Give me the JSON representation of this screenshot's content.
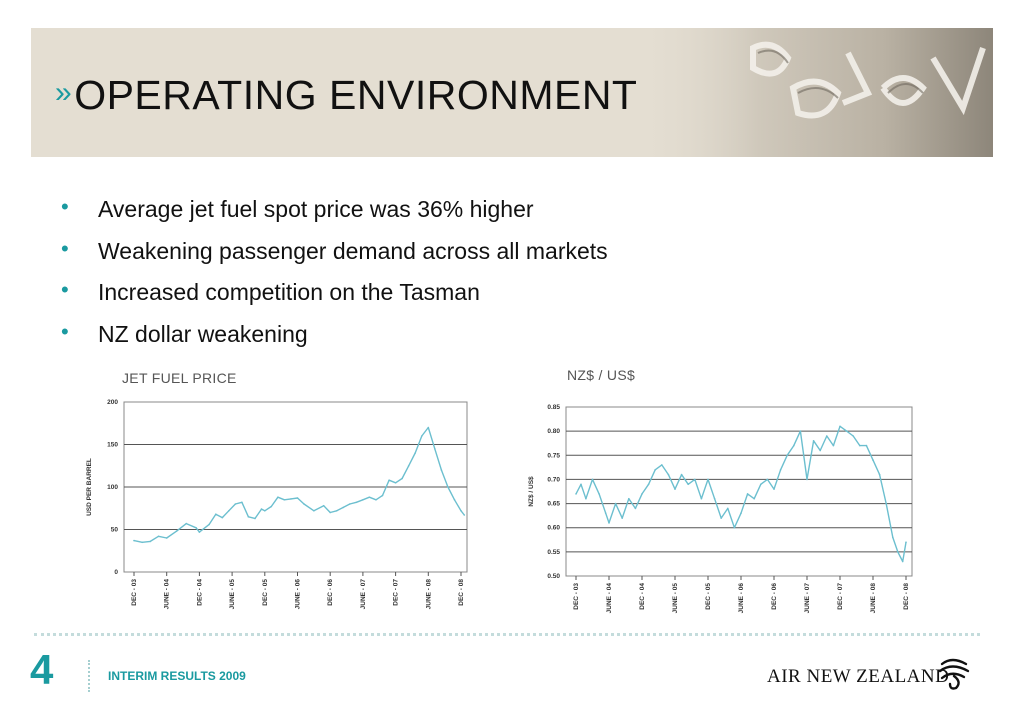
{
  "header": {
    "chevron": "»",
    "title": "OPERATING ENVIRONMENT",
    "background_color": "#e4ded2",
    "accent_color": "#1a9aa0",
    "art": "koru-wall-lettering-photo"
  },
  "bullets": [
    {
      "text": "Average jet fuel spot price was 36% higher"
    },
    {
      "text": "Weakening passenger demand across all markets"
    },
    {
      "text": "Increased competition on the Tasman"
    },
    {
      "text": "NZ dollar weakening"
    }
  ],
  "chart_data": [
    {
      "type": "line",
      "title": "JET FUEL PRICE",
      "ylabel": "USD PER BARREL",
      "ylim": [
        0,
        200
      ],
      "yticks": [
        "0",
        "50",
        "100",
        "150",
        "200"
      ],
      "xticks": [
        "DEC - 03",
        "JUNE - 04",
        "DEC - 04",
        "JUNE - 05",
        "DEC - 05",
        "JUNE - 06",
        "DEC - 06",
        "JUNE - 07",
        "DEC - 07",
        "JUNE - 08",
        "DEC - 08"
      ],
      "grid": true,
      "line_color": "#6cbfcf",
      "series": [
        {
          "x": [
            0,
            0.25,
            0.5,
            0.75,
            1,
            1.3,
            1.6,
            1.9,
            2,
            2.3,
            2.5,
            2.7,
            2.9,
            3.1,
            3.3,
            3.5,
            3.7,
            3.9,
            4,
            4.2,
            4.4,
            4.6,
            4.8,
            5,
            5.2,
            5.5,
            5.8,
            6,
            6.2,
            6.4,
            6.6,
            6.8,
            7,
            7.2,
            7.4,
            7.6,
            7.8,
            8,
            8.2,
            8.4,
            8.6,
            8.8,
            9,
            9.2,
            9.4,
            9.6,
            9.8,
            10,
            10.1
          ],
          "values": [
            37,
            35,
            36,
            42,
            40,
            48,
            57,
            52,
            47,
            56,
            68,
            64,
            72,
            80,
            82,
            65,
            63,
            74,
            72,
            77,
            88,
            85,
            86,
            87,
            80,
            72,
            78,
            70,
            72,
            76,
            80,
            82,
            85,
            88,
            85,
            90,
            108,
            105,
            110,
            125,
            140,
            160,
            170,
            145,
            120,
            100,
            85,
            72,
            67
          ]
        }
      ]
    },
    {
      "type": "line",
      "title": "NZ$ / US$",
      "ylabel": "NZ$ / US$",
      "ylim": [
        0.5,
        0.85
      ],
      "yticks": [
        "0.50",
        "0.55",
        "0.60",
        "0.65",
        "0.70",
        "0.75",
        "0.80",
        "0.85"
      ],
      "xticks": [
        "DEC - 03",
        "JUNE - 04",
        "DEC - 04",
        "JUNE - 05",
        "DEC - 05",
        "JUNE - 06",
        "DEC - 06",
        "JUNE - 07",
        "DEC - 07",
        "JUNE - 08",
        "DEC - 08"
      ],
      "grid": true,
      "line_color": "#6cbfcf",
      "series": [
        {
          "x": [
            0,
            0.15,
            0.3,
            0.5,
            0.7,
            0.9,
            1,
            1.2,
            1.4,
            1.6,
            1.8,
            2,
            2.2,
            2.4,
            2.6,
            2.8,
            3,
            3.2,
            3.4,
            3.6,
            3.8,
            4,
            4.2,
            4.4,
            4.6,
            4.8,
            5,
            5.2,
            5.4,
            5.6,
            5.8,
            6,
            6.2,
            6.4,
            6.6,
            6.8,
            7,
            7.2,
            7.4,
            7.6,
            7.8,
            8,
            8.2,
            8.4,
            8.6,
            8.8,
            9,
            9.2,
            9.4,
            9.6,
            9.75,
            9.9,
            10
          ],
          "values": [
            0.67,
            0.69,
            0.66,
            0.7,
            0.67,
            0.63,
            0.61,
            0.65,
            0.62,
            0.66,
            0.64,
            0.67,
            0.69,
            0.72,
            0.73,
            0.71,
            0.68,
            0.71,
            0.69,
            0.7,
            0.66,
            0.7,
            0.66,
            0.62,
            0.64,
            0.6,
            0.63,
            0.67,
            0.66,
            0.69,
            0.7,
            0.68,
            0.72,
            0.75,
            0.77,
            0.8,
            0.7,
            0.78,
            0.76,
            0.79,
            0.77,
            0.81,
            0.8,
            0.79,
            0.77,
            0.77,
            0.74,
            0.71,
            0.65,
            0.58,
            0.55,
            0.53,
            0.57
          ]
        }
      ]
    }
  ],
  "footer": {
    "page": "4",
    "label": "INTERIM RESULTS 2009",
    "brand": "AIR NEW ZEALAND"
  }
}
